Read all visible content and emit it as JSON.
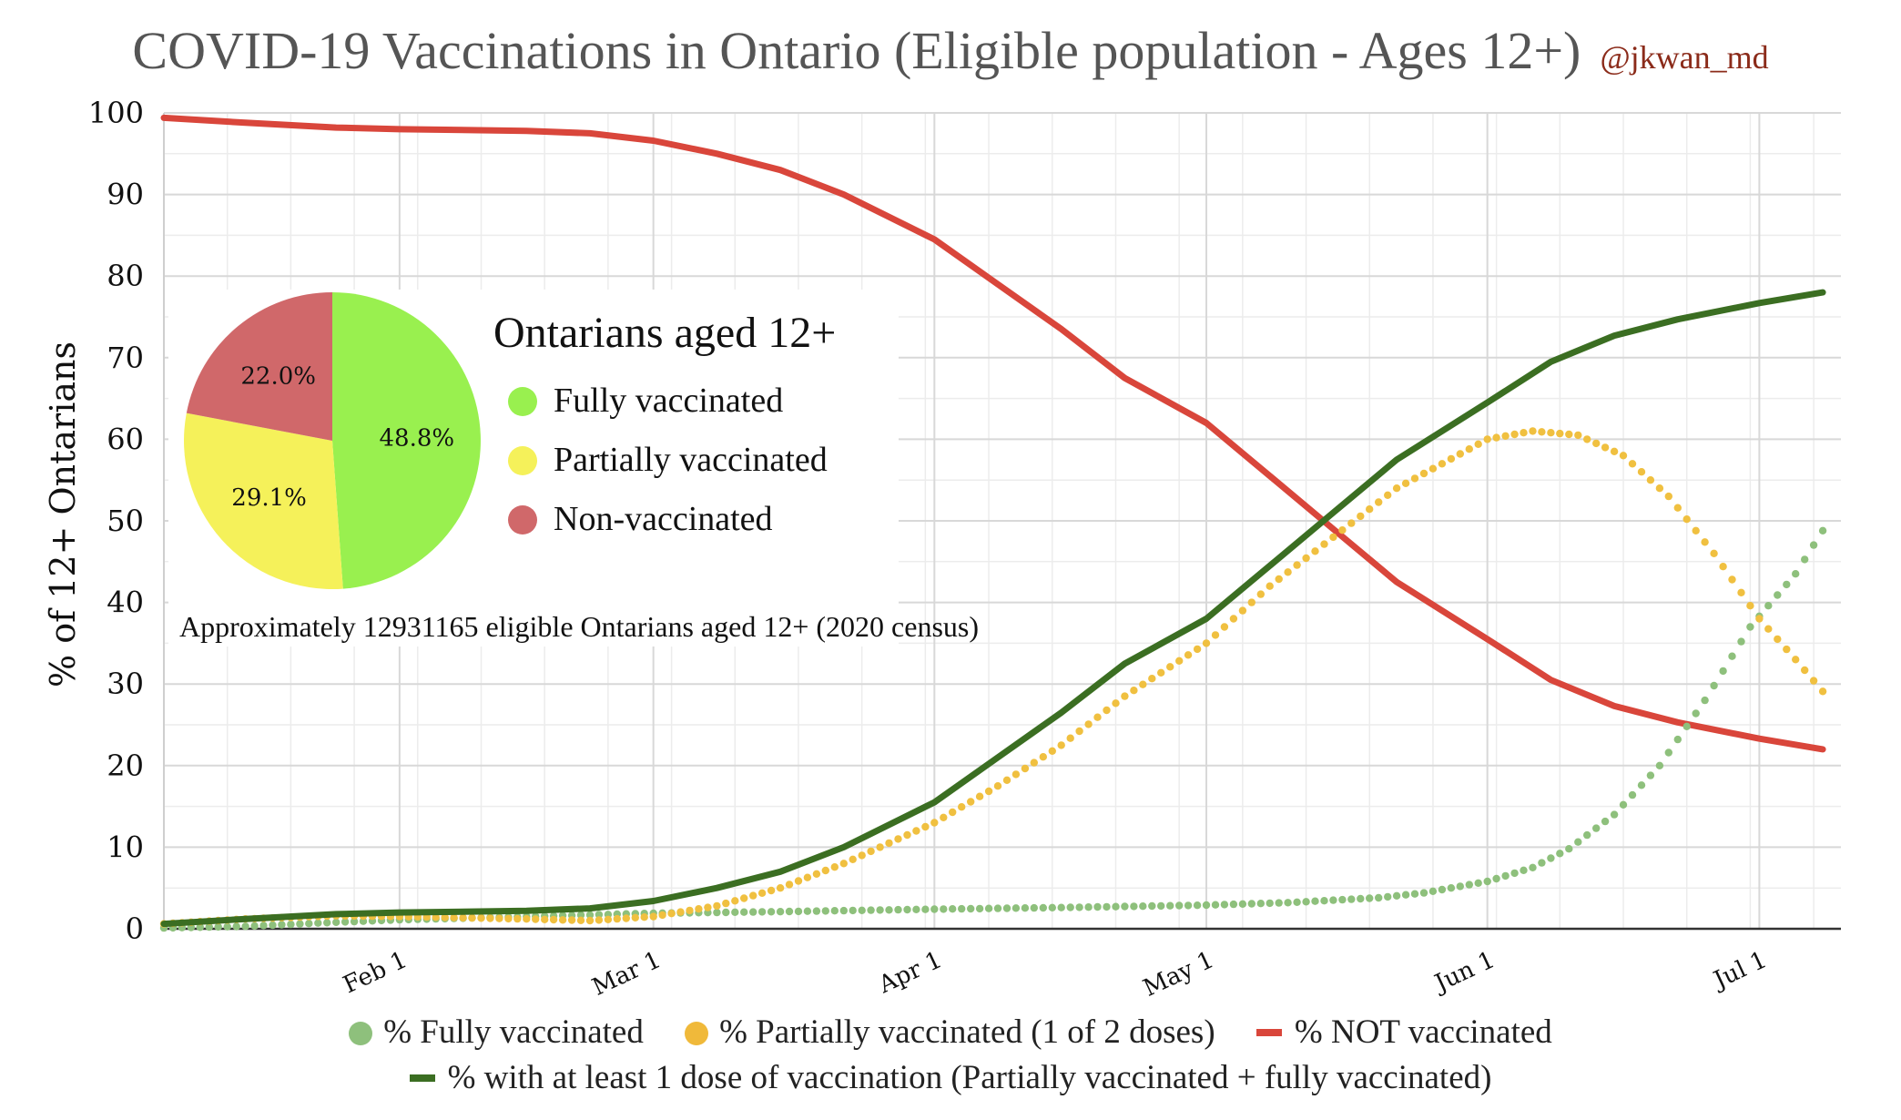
{
  "header": {
    "title": "COVID-19 Vaccinations in Ontario (Eligible population - Ages 12+)",
    "handle": "@jkwan_md"
  },
  "chart_data": [
    {
      "type": "line",
      "title": "COVID-19 Vaccinations in Ontario (Eligible population - Ages 12+)",
      "ylabel": "% of 12+ Ontarians",
      "xlabel": "",
      "ylim": [
        0,
        100
      ],
      "yticks": [
        0,
        10,
        20,
        30,
        40,
        50,
        60,
        70,
        80,
        90,
        100
      ],
      "x_range": [
        "2021-01-06",
        "2021-07-10"
      ],
      "xticks": [
        {
          "label": "Feb 1",
          "date": "2021-02-01"
        },
        {
          "label": "Mar 1",
          "date": "2021-03-01"
        },
        {
          "label": "Apr 1",
          "date": "2021-04-01"
        },
        {
          "label": "May 1",
          "date": "2021-05-01"
        },
        {
          "label": "Jun 1",
          "date": "2021-06-01"
        },
        {
          "label": "Jul 1",
          "date": "2021-07-01"
        }
      ],
      "grid": true,
      "legend_position": "bottom",
      "series": [
        {
          "name": "% Fully vaccinated",
          "style": "dots",
          "color": "#8ec07c",
          "points": [
            [
              "2021-01-06",
              0.1
            ],
            [
              "2021-01-15",
              0.3
            ],
            [
              "2021-01-25",
              0.8
            ],
            [
              "2021-02-01",
              1.1
            ],
            [
              "2021-02-15",
              1.5
            ],
            [
              "2021-03-01",
              1.9
            ],
            [
              "2021-03-15",
              2.1
            ],
            [
              "2021-04-01",
              2.4
            ],
            [
              "2021-04-15",
              2.6
            ],
            [
              "2021-05-01",
              2.9
            ],
            [
              "2021-05-10",
              3.2
            ],
            [
              "2021-05-20",
              3.8
            ],
            [
              "2021-05-25",
              4.4
            ],
            [
              "2021-06-01",
              5.8
            ],
            [
              "2021-06-06",
              7.5
            ],
            [
              "2021-06-10",
              9.8
            ],
            [
              "2021-06-15",
              14.0
            ],
            [
              "2021-06-20",
              20.0
            ],
            [
              "2021-06-25",
              28.0
            ],
            [
              "2021-06-30",
              37.0
            ],
            [
              "2021-07-05",
              43.5
            ],
            [
              "2021-07-08",
              48.8
            ]
          ]
        },
        {
          "name": "% Partially vaccinated (1 of 2 doses)",
          "style": "dots",
          "color": "#f0c040",
          "points": [
            [
              "2021-01-06",
              0.6
            ],
            [
              "2021-01-15",
              1.2
            ],
            [
              "2021-01-25",
              1.6
            ],
            [
              "2021-02-01",
              1.5
            ],
            [
              "2021-02-15",
              1.2
            ],
            [
              "2021-02-22",
              1.0
            ],
            [
              "2021-03-01",
              1.5
            ],
            [
              "2021-03-08",
              2.8
            ],
            [
              "2021-03-15",
              5.0
            ],
            [
              "2021-03-22",
              8.0
            ],
            [
              "2021-04-01",
              13.0
            ],
            [
              "2021-04-08",
              17.5
            ],
            [
              "2021-04-15",
              22.5
            ],
            [
              "2021-04-22",
              28.5
            ],
            [
              "2021-05-01",
              35.0
            ],
            [
              "2021-05-08",
              42.0
            ],
            [
              "2021-05-15",
              48.0
            ],
            [
              "2021-05-22",
              54.0
            ],
            [
              "2021-06-01",
              60.0
            ],
            [
              "2021-06-06",
              61.0
            ],
            [
              "2021-06-11",
              60.5
            ],
            [
              "2021-06-16",
              58.0
            ],
            [
              "2021-06-21",
              53.0
            ],
            [
              "2021-06-26",
              46.0
            ],
            [
              "2021-07-01",
              38.0
            ],
            [
              "2021-07-05",
              33.0
            ],
            [
              "2021-07-08",
              29.1
            ]
          ]
        },
        {
          "name": "% NOT vaccinated",
          "style": "line",
          "color": "#d9463b",
          "points": [
            [
              "2021-01-06",
              99.4
            ],
            [
              "2021-01-15",
              98.8
            ],
            [
              "2021-01-25",
              98.2
            ],
            [
              "2021-02-01",
              98.0
            ],
            [
              "2021-02-15",
              97.8
            ],
            [
              "2021-02-22",
              97.5
            ],
            [
              "2021-03-01",
              96.6
            ],
            [
              "2021-03-08",
              95.0
            ],
            [
              "2021-03-15",
              93.0
            ],
            [
              "2021-03-22",
              90.0
            ],
            [
              "2021-04-01",
              84.5
            ],
            [
              "2021-04-08",
              79.0
            ],
            [
              "2021-04-15",
              73.5
            ],
            [
              "2021-04-22",
              67.5
            ],
            [
              "2021-05-01",
              62.0
            ],
            [
              "2021-05-08",
              55.5
            ],
            [
              "2021-05-15",
              49.0
            ],
            [
              "2021-05-22",
              42.5
            ],
            [
              "2021-06-01",
              35.5
            ],
            [
              "2021-06-08",
              30.5
            ],
            [
              "2021-06-15",
              27.3
            ],
            [
              "2021-06-22",
              25.3
            ],
            [
              "2021-07-01",
              23.3
            ],
            [
              "2021-07-08",
              22.0
            ]
          ]
        },
        {
          "name": "% with at least 1 dose of vaccination (Partially vaccinated + fully vaccinated)",
          "style": "line",
          "color": "#3b6e22",
          "points": [
            [
              "2021-01-06",
              0.6
            ],
            [
              "2021-01-15",
              1.2
            ],
            [
              "2021-01-25",
              1.8
            ],
            [
              "2021-02-01",
              2.0
            ],
            [
              "2021-02-15",
              2.2
            ],
            [
              "2021-02-22",
              2.5
            ],
            [
              "2021-03-01",
              3.4
            ],
            [
              "2021-03-08",
              5.0
            ],
            [
              "2021-03-15",
              7.0
            ],
            [
              "2021-03-22",
              10.0
            ],
            [
              "2021-04-01",
              15.5
            ],
            [
              "2021-04-08",
              21.0
            ],
            [
              "2021-04-15",
              26.5
            ],
            [
              "2021-04-22",
              32.5
            ],
            [
              "2021-05-01",
              38.0
            ],
            [
              "2021-05-08",
              44.5
            ],
            [
              "2021-05-15",
              51.0
            ],
            [
              "2021-05-22",
              57.5
            ],
            [
              "2021-06-01",
              64.5
            ],
            [
              "2021-06-08",
              69.5
            ],
            [
              "2021-06-15",
              72.7
            ],
            [
              "2021-06-22",
              74.7
            ],
            [
              "2021-07-01",
              76.7
            ],
            [
              "2021-07-08",
              78.0
            ]
          ]
        }
      ]
    },
    {
      "type": "pie",
      "title": "Ontarians aged 12+",
      "slices": [
        {
          "label": "Fully vaccinated",
          "value": 48.8,
          "value_label": "48.8%",
          "color": "#99f04f"
        },
        {
          "label": "Partially vaccinated",
          "value": 29.1,
          "value_label": "29.1%",
          "color": "#f5f15a"
        },
        {
          "label": "Non-vaccinated",
          "value": 22.0,
          "value_label": "22.0%",
          "color": "#d0686a"
        }
      ],
      "note": "Approximately 12931165 eligible Ontarians aged 12+ (2020 census)"
    }
  ],
  "legend": {
    "row1": [
      "% Fully vaccinated",
      "% Partially vaccinated (1 of 2 doses)",
      "% NOT vaccinated"
    ],
    "row2": [
      "% with at least 1 dose of vaccination (Partially vaccinated + fully vaccinated)"
    ]
  }
}
